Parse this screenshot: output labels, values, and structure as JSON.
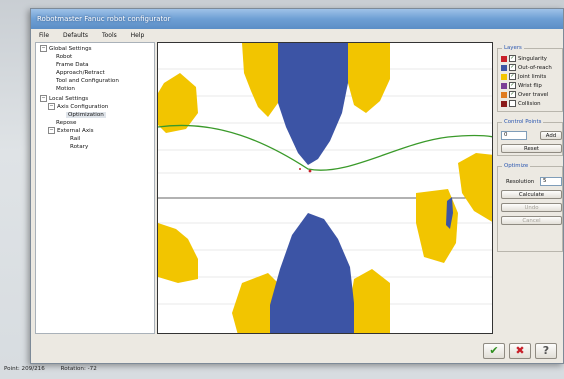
{
  "window": {
    "title": "Robotmaster Fanuc robot configurator"
  },
  "menu": [
    "File",
    "Defaults",
    "Tools",
    "Help"
  ],
  "tree": [
    {
      "label": "Global Settings",
      "exp": "−"
    },
    {
      "label": "Robot"
    },
    {
      "label": "Frame Data"
    },
    {
      "label": "Approach/Retract"
    },
    {
      "label": "Tool and Configuration"
    },
    {
      "label": "Motion"
    },
    {
      "label": "Local Settings",
      "exp": "−"
    },
    {
      "label": "Axis Configuration",
      "exp": "−"
    },
    {
      "label": "Optimization",
      "selected": true
    },
    {
      "label": "Repose"
    },
    {
      "label": "External Axis",
      "exp": "−"
    },
    {
      "label": "Rail"
    },
    {
      "label": "Rotary"
    }
  ],
  "layers": {
    "title": "Layers",
    "items": [
      {
        "label": "Singularity",
        "color": "#c8202a",
        "checked": true
      },
      {
        "label": "Out-of-reach",
        "color": "#3c54a5",
        "checked": true
      },
      {
        "label": "Joint limits",
        "color": "#f2c500",
        "checked": true
      },
      {
        "label": "Wrist flip",
        "color": "#7a3d96",
        "checked": true
      },
      {
        "label": "Over travel",
        "color": "#e07b1f",
        "checked": true
      },
      {
        "label": "Collision",
        "color": "#8a1a1a",
        "checked": false
      }
    ]
  },
  "control_points": {
    "title": "Control Points",
    "value": "0",
    "add_label": "Add",
    "reset_label": "Reset"
  },
  "optimize": {
    "title": "Optimize",
    "resolution_label": "Resolution",
    "resolution_value": "5",
    "calculate_label": "Calculate",
    "undo_label": "Undo",
    "cancel_label": "Cancel"
  },
  "dialog": {
    "ok_symbol": "✔",
    "cancel_symbol": "✖",
    "help_symbol": "?"
  },
  "status": {
    "point": "Point: 209/216",
    "rotation": "Rotation: -72"
  },
  "colors": {
    "yellow": "#f2c500",
    "blue": "#3c54a5",
    "curve": "#3a9a2a"
  }
}
